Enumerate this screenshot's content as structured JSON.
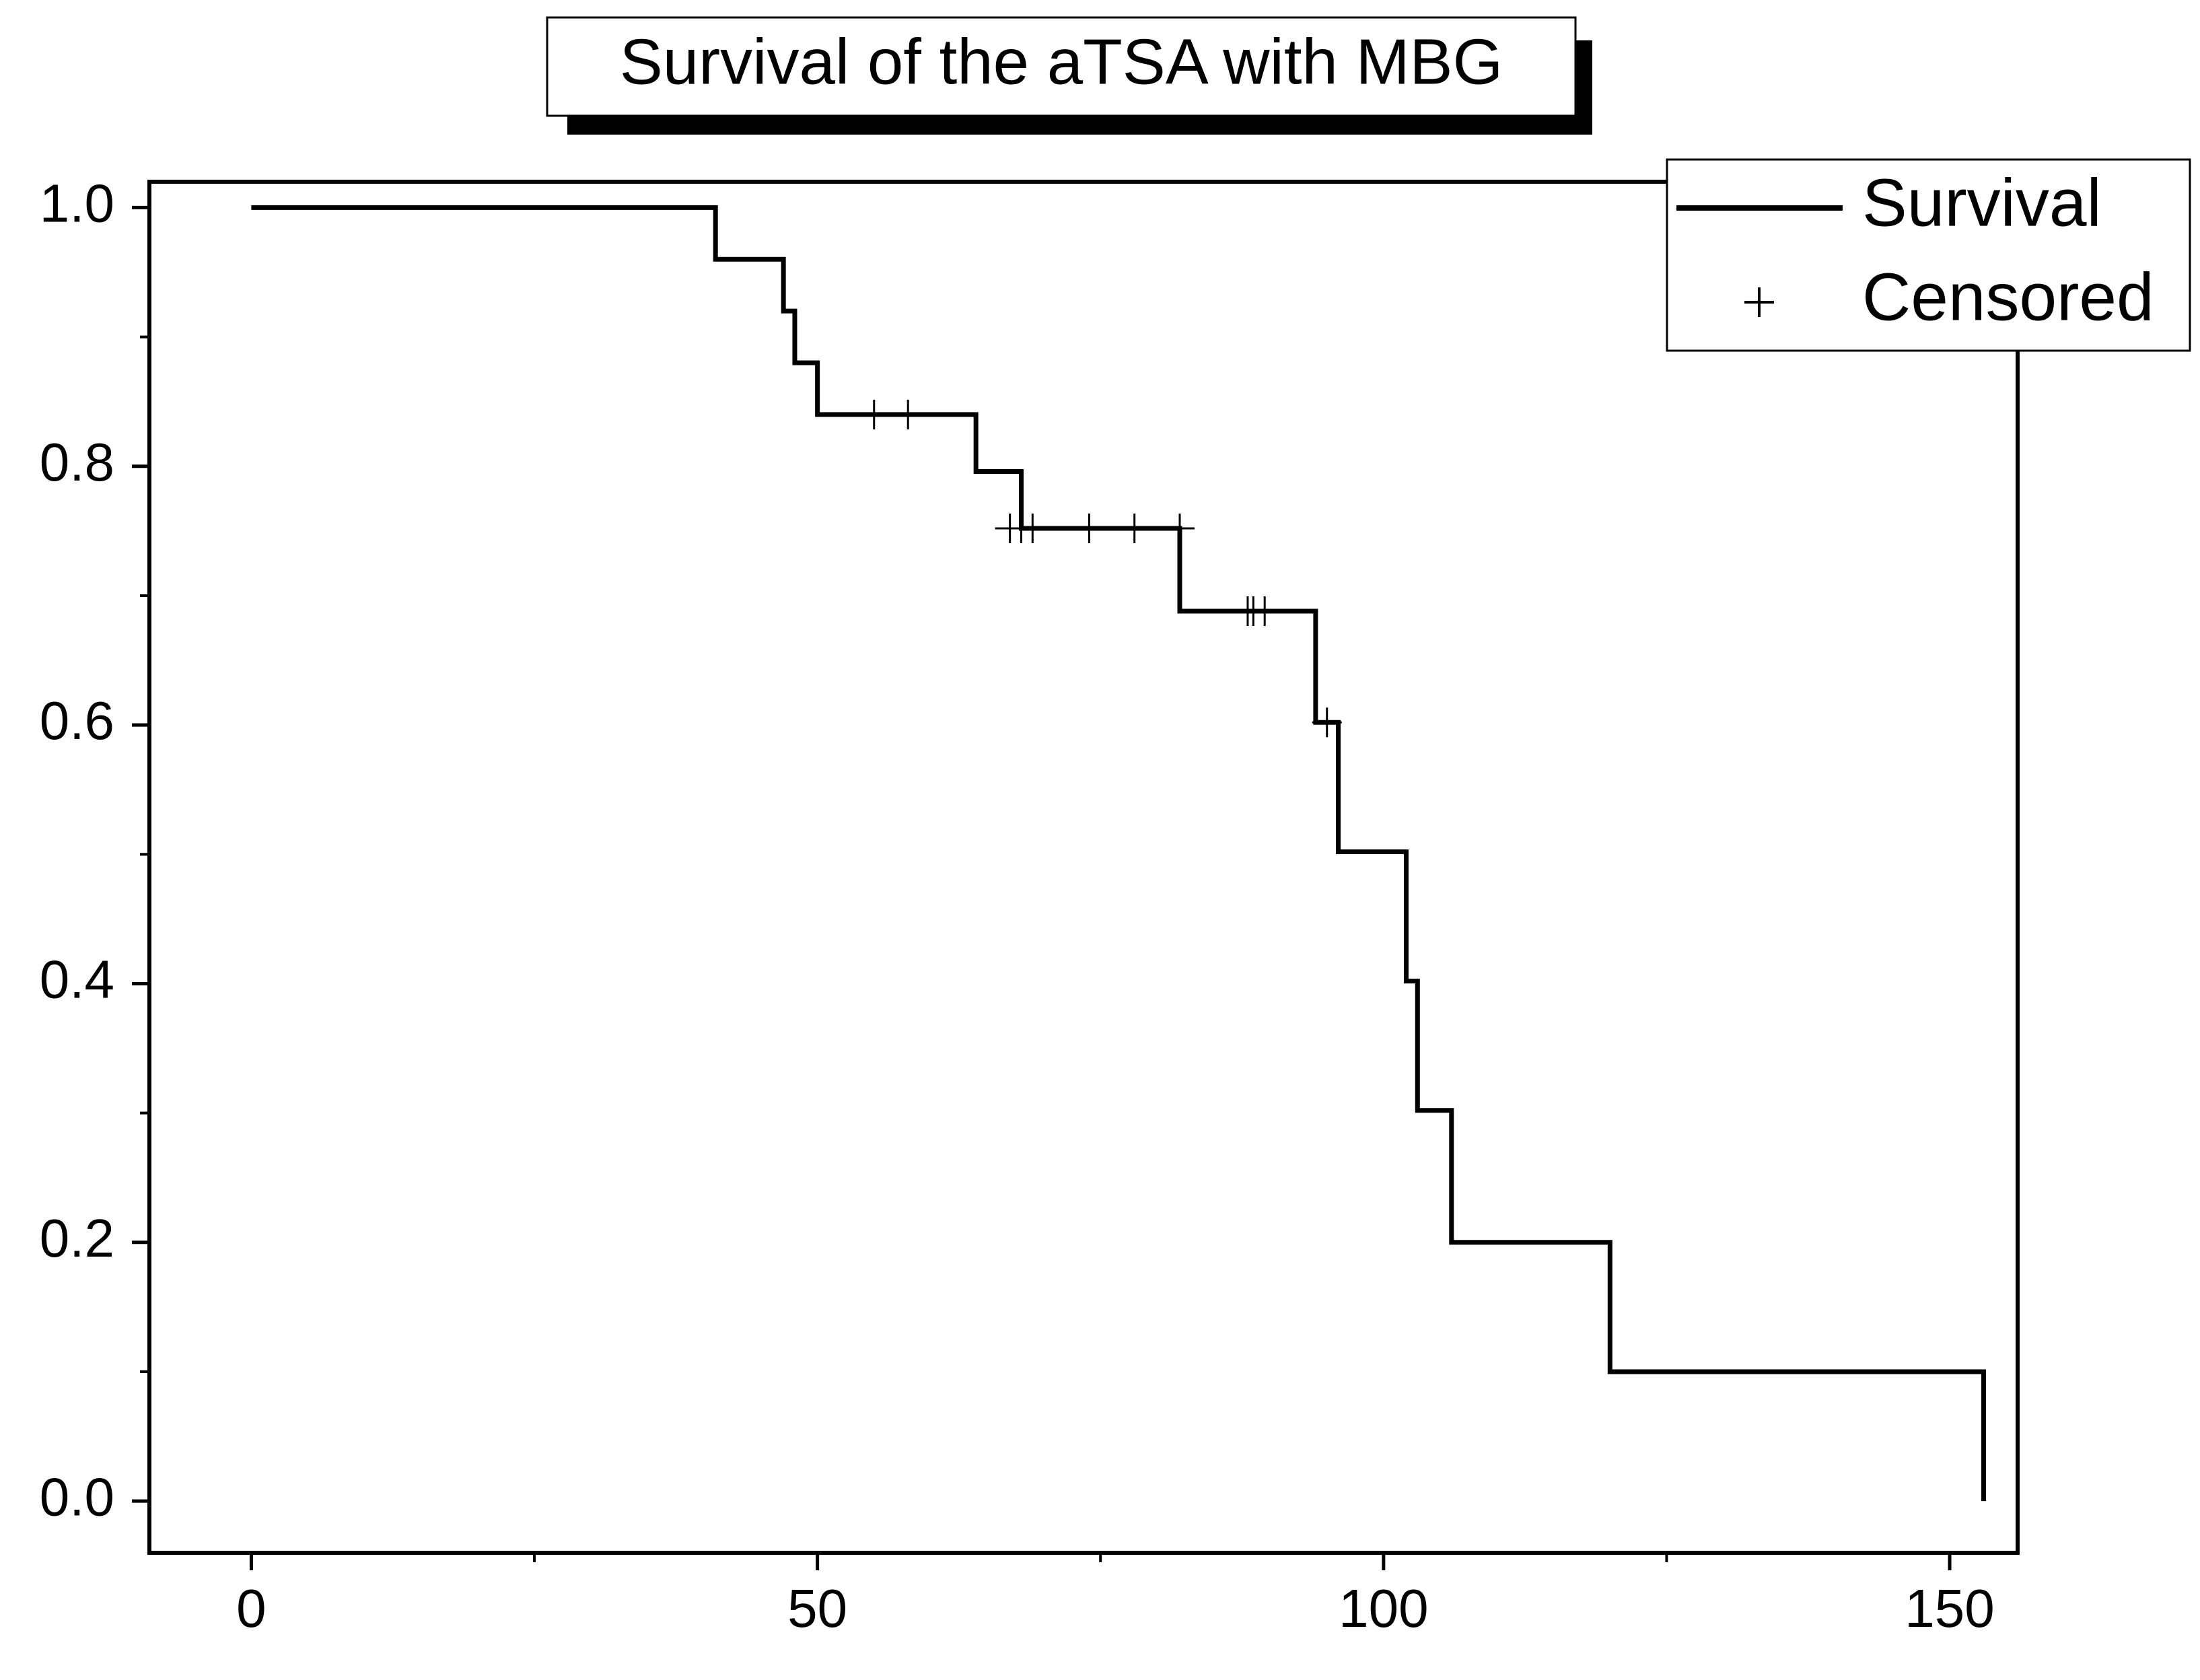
{
  "chart_data": {
    "type": "line",
    "title": "Survival of the aTSA with MBG",
    "xlabel": "",
    "ylabel": "",
    "xlim": [
      -9,
      156
    ],
    "ylim": [
      -0.04,
      1.02
    ],
    "x_ticks": [
      0,
      50,
      100,
      150
    ],
    "x_tick_labels": [
      "0",
      "50",
      "100",
      "150"
    ],
    "x_minor_ticks": [
      25,
      75,
      125
    ],
    "y_ticks": [
      0.0,
      0.2,
      0.4,
      0.6,
      0.8,
      1.0
    ],
    "y_tick_labels": [
      "0.0",
      "0.2",
      "0.4",
      "0.6",
      "0.8",
      "1.0"
    ],
    "y_minor_ticks": [
      0.1,
      0.3,
      0.5,
      0.7,
      0.9
    ],
    "grid": false,
    "legend_position": "top-right",
    "series": [
      {
        "name": "Survival",
        "style": "step",
        "color": "#000000",
        "x": [
          0,
          41,
          47,
          48,
          50,
          64,
          68,
          82,
          94,
          96,
          102,
          103,
          106,
          120,
          153
        ],
        "y": [
          1.0,
          0.96,
          0.92,
          0.88,
          0.84,
          0.796,
          0.752,
          0.688,
          0.602,
          0.502,
          0.402,
          0.302,
          0.2,
          0.1,
          0.0
        ]
      },
      {
        "name": "Censored",
        "style": "marker",
        "marker": "+",
        "color": "#000000",
        "x": [
          55,
          58,
          67,
          68,
          69,
          74,
          78,
          82,
          88,
          88.5,
          89.5,
          95
        ],
        "y": [
          0.84,
          0.84,
          0.752,
          0.752,
          0.752,
          0.752,
          0.752,
          0.752,
          0.688,
          0.688,
          0.688,
          0.602
        ]
      }
    ]
  }
}
